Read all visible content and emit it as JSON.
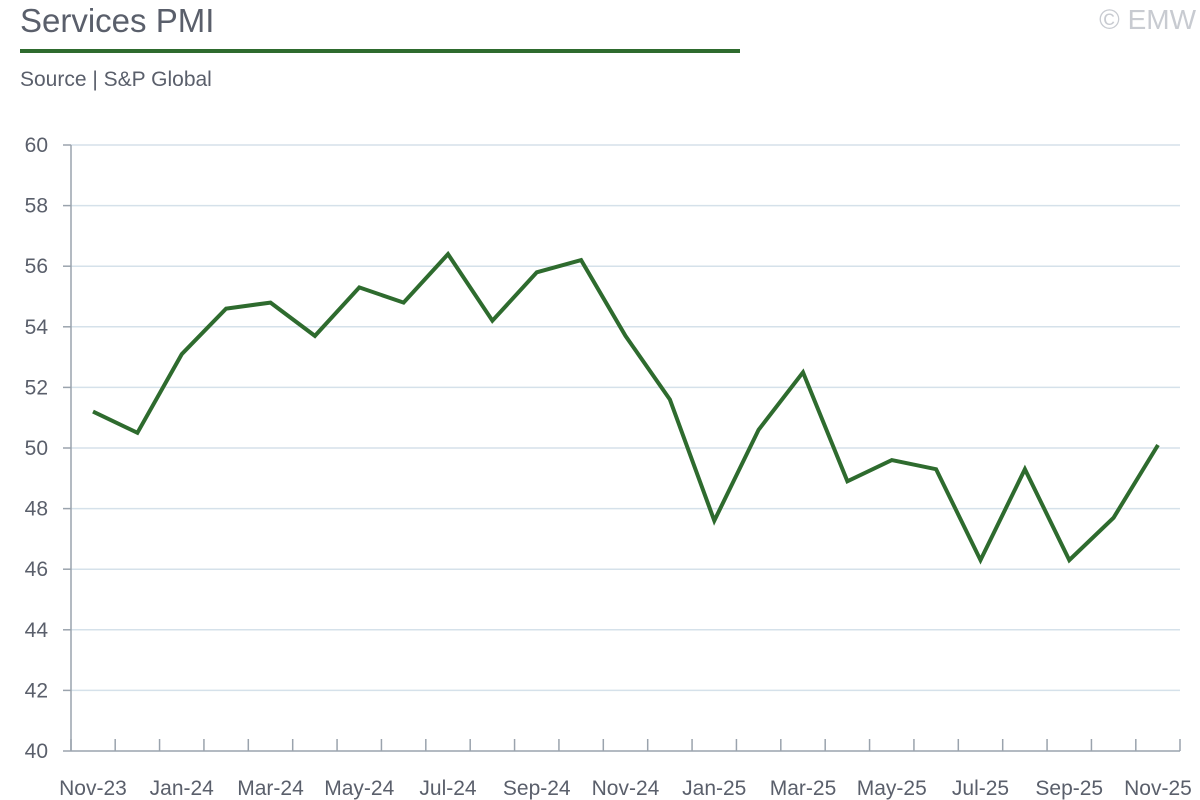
{
  "header": {
    "title": "Services PMI",
    "subtitle": "Source | S&P Global",
    "copyright": "© EMW"
  },
  "colors": {
    "line": "#2e6b2e",
    "grid": "#d5e1ea",
    "text": "#5a5f6b",
    "copyright": "#c8cbd1"
  },
  "chart_data": {
    "type": "line",
    "title": "Services PMI",
    "subtitle": "Source | S&P Global",
    "xlabel": "",
    "ylabel": "",
    "ylim": [
      40,
      60
    ],
    "yticks": [
      40,
      42,
      44,
      46,
      48,
      50,
      52,
      54,
      56,
      58,
      60
    ],
    "grid": true,
    "legend": "none",
    "x": [
      "Nov-23",
      "Dec-23",
      "Jan-24",
      "Feb-24",
      "Mar-24",
      "Apr-24",
      "May-24",
      "Jun-24",
      "Jul-24",
      "Aug-24",
      "Sep-24",
      "Oct-24",
      "Nov-24",
      "Dec-24",
      "Jan-25",
      "Feb-25",
      "Mar-25",
      "Apr-25",
      "May-25",
      "Jun-25",
      "Jul-25",
      "Aug-25",
      "Sep-25",
      "Oct-25",
      "Nov-25"
    ],
    "x_tick_labels": [
      "Nov-23",
      "Jan-24",
      "Mar-24",
      "May-24",
      "Jul-24",
      "Sep-24",
      "Nov-24",
      "Jan-25",
      "Mar-25",
      "May-25",
      "Jul-25",
      "Sep-25",
      "Nov-25"
    ],
    "series": [
      {
        "values": [
          51.2,
          50.5,
          53.1,
          54.6,
          54.8,
          53.7,
          55.3,
          54.8,
          56.4,
          54.2,
          55.8,
          56.2,
          53.7,
          51.6,
          47.6,
          50.6,
          52.5,
          48.9,
          49.6,
          49.3,
          46.3,
          49.3,
          46.3,
          47.7,
          50.1
        ]
      }
    ]
  }
}
